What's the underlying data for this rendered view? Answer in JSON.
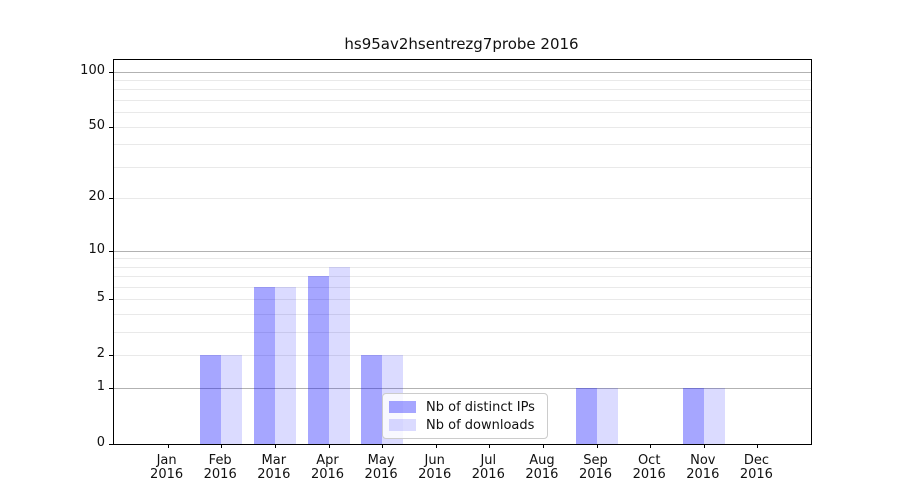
{
  "title": "hs95av2hsentrezg7probe 2016",
  "colors": {
    "ips_bar": "rgba(0,0,255,0.35)",
    "downloads_bar": "rgba(0,0,255,0.14)",
    "major_grid": "#b2b2b2",
    "minor_grid": "#e9e9e9",
    "spine": "#000000"
  },
  "legend": {
    "items": [
      {
        "label": "Nb of distinct IPs",
        "color_key": "ips_bar"
      },
      {
        "label": "Nb of downloads",
        "color_key": "downloads_bar"
      }
    ]
  },
  "y_axis": {
    "scale": "log1p",
    "max": 100,
    "tick_labels": [
      "0",
      "1",
      "2",
      "5",
      "10",
      "20",
      "50",
      "100"
    ],
    "tick_values": [
      0,
      1,
      2,
      5,
      10,
      20,
      50,
      100
    ],
    "major_grid_values": [
      1,
      10,
      100
    ],
    "minor_grid_values": [
      2,
      3,
      4,
      5,
      6,
      7,
      8,
      9,
      20,
      30,
      40,
      50,
      60,
      70,
      80,
      90,
      100
    ]
  },
  "x_axis": {
    "categories": [
      {
        "month": "Jan",
        "year": "2016"
      },
      {
        "month": "Feb",
        "year": "2016"
      },
      {
        "month": "Mar",
        "year": "2016"
      },
      {
        "month": "Apr",
        "year": "2016"
      },
      {
        "month": "May",
        "year": "2016"
      },
      {
        "month": "Jun",
        "year": "2016"
      },
      {
        "month": "Jul",
        "year": "2016"
      },
      {
        "month": "Aug",
        "year": "2016"
      },
      {
        "month": "Sep",
        "year": "2016"
      },
      {
        "month": "Oct",
        "year": "2016"
      },
      {
        "month": "Nov",
        "year": "2016"
      },
      {
        "month": "Dec",
        "year": "2016"
      }
    ]
  },
  "chart_data": {
    "type": "bar",
    "title": "hs95av2hsentrezg7probe 2016",
    "xlabel": "",
    "ylabel": "",
    "categories": [
      "Jan 2016",
      "Feb 2016",
      "Mar 2016",
      "Apr 2016",
      "May 2016",
      "Jun 2016",
      "Jul 2016",
      "Aug 2016",
      "Sep 2016",
      "Oct 2016",
      "Nov 2016",
      "Dec 2016"
    ],
    "series": [
      {
        "name": "Nb of distinct IPs",
        "values": [
          0,
          2,
          6,
          7,
          2,
          0,
          0,
          0,
          1,
          0,
          1,
          0
        ]
      },
      {
        "name": "Nb of downloads",
        "values": [
          0,
          2,
          6,
          8,
          2,
          0,
          0,
          0,
          1,
          0,
          1,
          0
        ]
      }
    ],
    "yscale": "log1p (symlog-like: 0 at baseline, log spacing above)",
    "yticks": [
      0,
      1,
      2,
      5,
      10,
      20,
      50,
      100
    ],
    "ylim": [
      0,
      110
    ],
    "grid": "horizontal, major at powers of 10, minor at 2-9 steps",
    "legend_position": "lower center, inside axes"
  }
}
